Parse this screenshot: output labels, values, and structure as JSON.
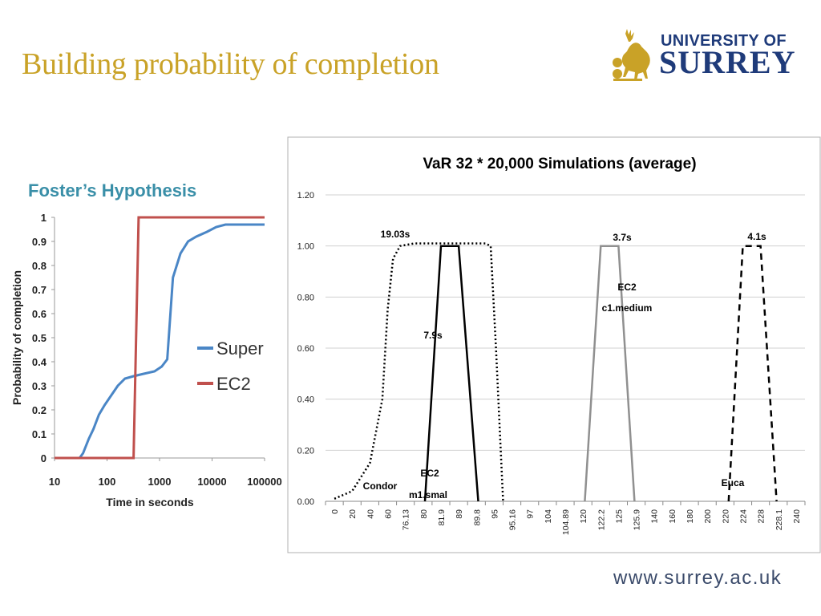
{
  "slide": {
    "title": "Building probability of completion",
    "subtitle": "Foster’s Hypothesis",
    "footer_url": "www.surrey.ac.uk"
  },
  "logo": {
    "line1": "UNIVERSITY OF",
    "line2": "SURREY",
    "icon": "stag-icon"
  },
  "colors": {
    "title": "#c9a227",
    "subtitle": "#3a8fa8",
    "logo": "#1f3b7a",
    "super": "#4a86c6",
    "ec2": "#c0504d"
  },
  "chart_data": [
    {
      "type": "line",
      "title": "",
      "xlabel": "Time in seconds",
      "ylabel": "Probability of completion",
      "xscale": "log",
      "xlim": [
        10,
        100000
      ],
      "ylim": [
        0,
        1
      ],
      "x_ticks": [
        "10",
        "100",
        "1000",
        "10000",
        "100000"
      ],
      "y_ticks": [
        "0",
        "0.1",
        "0.2",
        "0.3",
        "0.4",
        "0.5",
        "0.6",
        "0.7",
        "0.8",
        "0.9",
        "1"
      ],
      "legend_position": "right",
      "series": [
        {
          "name": "Super",
          "color": "#4a86c6",
          "points": [
            [
              10,
              0
            ],
            [
              30,
              0
            ],
            [
              35,
              0.02
            ],
            [
              45,
              0.08
            ],
            [
              55,
              0.12
            ],
            [
              70,
              0.18
            ],
            [
              90,
              0.22
            ],
            [
              120,
              0.26
            ],
            [
              160,
              0.3
            ],
            [
              220,
              0.33
            ],
            [
              320,
              0.34
            ],
            [
              500,
              0.35
            ],
            [
              800,
              0.36
            ],
            [
              1100,
              0.38
            ],
            [
              1400,
              0.41
            ],
            [
              1800,
              0.75
            ],
            [
              2500,
              0.85
            ],
            [
              3500,
              0.9
            ],
            [
              5000,
              0.92
            ],
            [
              8000,
              0.94
            ],
            [
              12000,
              0.96
            ],
            [
              18000,
              0.97
            ],
            [
              30000,
              0.97
            ],
            [
              60000,
              0.97
            ],
            [
              100000,
              0.97
            ]
          ]
        },
        {
          "name": "EC2",
          "color": "#c0504d",
          "points": [
            [
              10,
              0
            ],
            [
              320,
              0
            ],
            [
              400,
              1
            ],
            [
              100000,
              1
            ]
          ]
        }
      ]
    },
    {
      "type": "line",
      "title": "VaR 32 * 20,000 Simulations (average)",
      "xlabel": "",
      "ylabel": "",
      "ylim": [
        0,
        1.2
      ],
      "y_ticks": [
        "0.00",
        "0.20",
        "0.40",
        "0.60",
        "0.80",
        "1.00",
        "1.20"
      ],
      "categories": [
        "0",
        "20",
        "40",
        "60",
        "76.13",
        "80",
        "81.9",
        "89",
        "89.8",
        "95",
        "95.16",
        "97",
        "104",
        "104.89",
        "120",
        "122.2",
        "125",
        "125.9",
        "140",
        "160",
        "180",
        "200",
        "220",
        "224",
        "228",
        "228.1",
        "240"
      ],
      "grid": true,
      "series": [
        {
          "name": "Condor",
          "style": "dotted",
          "color": "#000000",
          "points": [
            [
              0,
              0.01
            ],
            [
              1,
              0.04
            ],
            [
              2,
              0.15
            ],
            [
              2.7,
              0.4
            ],
            [
              3,
              0.75
            ],
            [
              3.3,
              0.95
            ],
            [
              3.7,
              1.0
            ],
            [
              4.5,
              1.01
            ],
            [
              5.5,
              1.01
            ],
            [
              7,
              1.01
            ],
            [
              8.5,
              1.01
            ],
            [
              8.8,
              1.0
            ],
            [
              9.1,
              0.6
            ],
            [
              9.5,
              0.0
            ]
          ]
        },
        {
          "name": "EC2 m1.smal",
          "style": "solid",
          "color": "#000000",
          "points": [
            [
              5.1,
              0
            ],
            [
              6,
              1.0
            ],
            [
              7,
              1.0
            ],
            [
              8.1,
              0
            ]
          ]
        },
        {
          "name": "EC2 c1.medium",
          "style": "solid",
          "color": "#909090",
          "points": [
            [
              14.1,
              0
            ],
            [
              15,
              1.0
            ],
            [
              16,
              1.0
            ],
            [
              16.9,
              0
            ]
          ]
        },
        {
          "name": "Euca",
          "style": "dashed",
          "color": "#000000",
          "points": [
            [
              22.2,
              0
            ],
            [
              23,
              1.0
            ],
            [
              24,
              1.0
            ],
            [
              24.9,
              0
            ]
          ]
        }
      ],
      "annotations": [
        "19.03s",
        "7.9s",
        "3.7s",
        "4.1s",
        "Condor",
        "EC2",
        "m1.smal",
        "EC2",
        "c1.medium",
        "Euca"
      ]
    }
  ]
}
